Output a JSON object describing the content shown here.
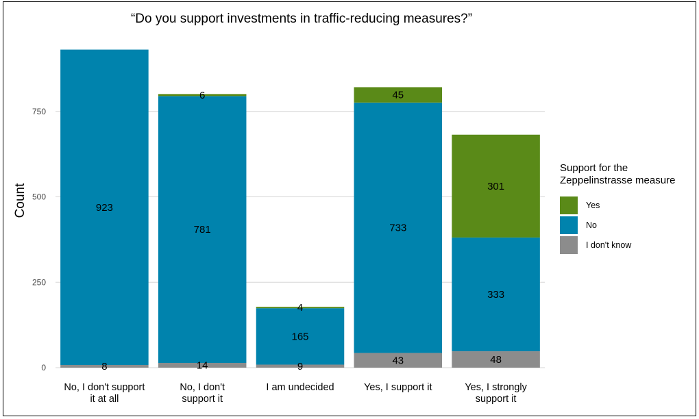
{
  "chart_data": {
    "type": "bar",
    "stacked": true,
    "title": "“Do you support investments in traffic-reducing measures?”",
    "xlabel": "",
    "ylabel": "Count",
    "ylim": [
      0,
      930
    ],
    "yticks": [
      0,
      250,
      500,
      750
    ],
    "grid": true,
    "categories": [
      [
        "No, I don't support",
        "it at all"
      ],
      [
        "No, I don't",
        "support it"
      ],
      [
        "I am undecided"
      ],
      [
        "Yes, I support it"
      ],
      [
        "Yes, I strongly",
        "support it"
      ]
    ],
    "series": [
      {
        "name": "I don't know",
        "color": "#8c8c8c",
        "values": [
          8,
          14,
          9,
          43,
          48
        ]
      },
      {
        "name": "No",
        "color": "#0083ad",
        "values": [
          923,
          781,
          165,
          733,
          333
        ]
      },
      {
        "name": "Yes",
        "color": "#5a8a18",
        "values": [
          0,
          6,
          4,
          45,
          301
        ]
      }
    ],
    "data_labels": [
      {
        "category": 0,
        "series": "I don't know",
        "text": "8"
      },
      {
        "category": 0,
        "series": "No",
        "text": "923"
      },
      {
        "category": 1,
        "series": "I don't know",
        "text": "14"
      },
      {
        "category": 1,
        "series": "No",
        "text": "781"
      },
      {
        "category": 1,
        "series": "Yes",
        "text": "6"
      },
      {
        "category": 2,
        "series": "I don't know",
        "text": "9"
      },
      {
        "category": 2,
        "series": "No",
        "text": "165"
      },
      {
        "category": 2,
        "series": "Yes",
        "text": "4"
      },
      {
        "category": 3,
        "series": "I don't know",
        "text": "43"
      },
      {
        "category": 3,
        "series": "No",
        "text": "733"
      },
      {
        "category": 3,
        "series": "Yes",
        "text": "45"
      },
      {
        "category": 4,
        "series": "I don't know",
        "text": "48"
      },
      {
        "category": 4,
        "series": "No",
        "text": "333"
      },
      {
        "category": 4,
        "series": "Yes",
        "text": "301"
      }
    ],
    "legend": {
      "title": [
        "Support for the",
        "Zeppelinstrasse measure"
      ],
      "placement": "right",
      "order": [
        "Yes",
        "No",
        "I don't know"
      ]
    }
  }
}
